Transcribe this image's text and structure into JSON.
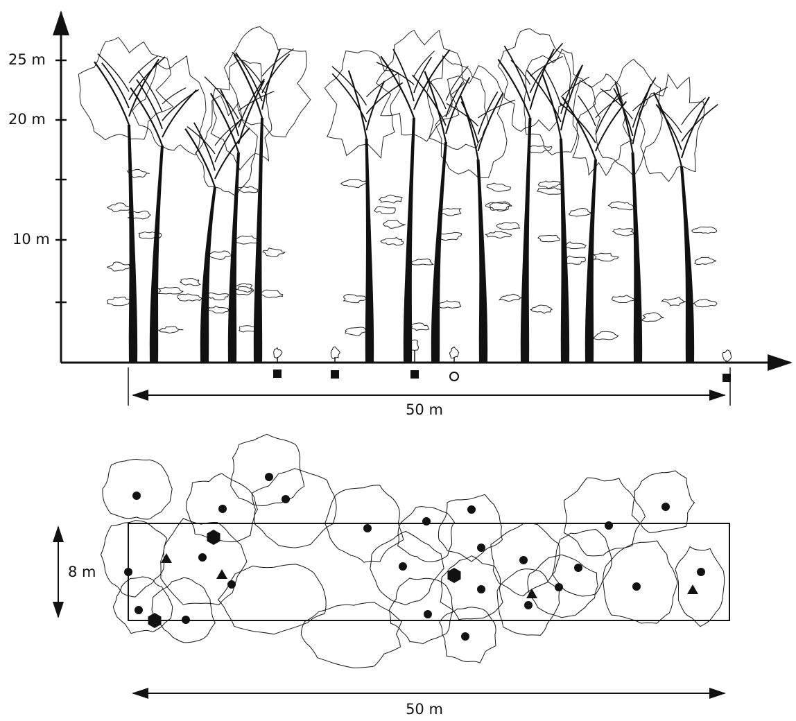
{
  "profile": {
    "height_labels": [
      "25 m",
      "20 m",
      "10 m"
    ],
    "width_label": "50 m"
  },
  "plan": {
    "depth_label": "8 m",
    "width_label": "50 m"
  }
}
